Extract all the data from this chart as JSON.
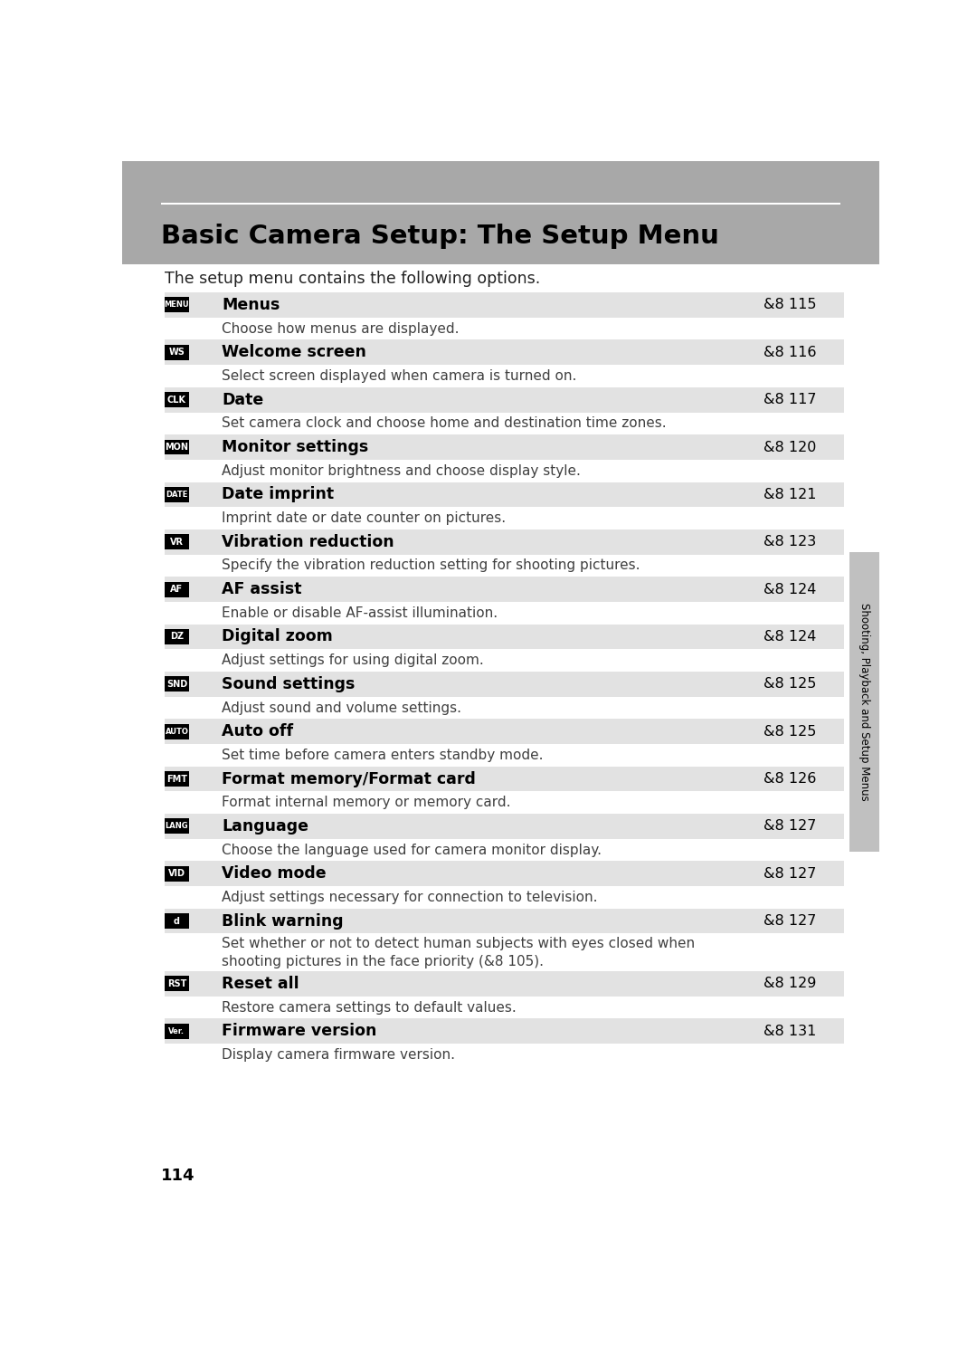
{
  "title": "Basic Camera Setup: The Setup Menu",
  "intro_text": "The setup menu contains the following options.",
  "page_number": "114",
  "side_label": "Shooting, Playback and Setup Menus",
  "bg_color": "#ffffff",
  "header_bg": "#a8a8a8",
  "row_bg_dark": "#e2e2e2",
  "row_bg_light": "#ffffff",
  "entries": [
    {
      "icon_key": "MENU",
      "label": "Menus",
      "page_ref": "115",
      "description": "Choose how menus are displayed."
    },
    {
      "icon_key": "WS",
      "label": "Welcome screen",
      "page_ref": "116",
      "description": "Select screen displayed when camera is turned on."
    },
    {
      "icon_key": "CLK",
      "label": "Date",
      "page_ref": "117",
      "description": "Set camera clock and choose home and destination time zones."
    },
    {
      "icon_key": "MON",
      "label": "Monitor settings",
      "page_ref": "120",
      "description": "Adjust monitor brightness and choose display style."
    },
    {
      "icon_key": "DATE",
      "label": "Date imprint",
      "page_ref": "121",
      "description": "Imprint date or date counter on pictures."
    },
    {
      "icon_key": "VR",
      "label": "Vibration reduction",
      "page_ref": "123",
      "description": "Specify the vibration reduction setting for shooting pictures."
    },
    {
      "icon_key": "AF",
      "label": "AF assist",
      "page_ref": "124",
      "description": "Enable or disable AF-assist illumination."
    },
    {
      "icon_key": "DZ",
      "label": "Digital zoom",
      "page_ref": "124",
      "description": "Adjust settings for using digital zoom."
    },
    {
      "icon_key": "SND",
      "label": "Sound settings",
      "page_ref": "125",
      "description": "Adjust sound and volume settings."
    },
    {
      "icon_key": "AUTO",
      "label": "Auto off",
      "page_ref": "125",
      "description": "Set time before camera enters standby mode."
    },
    {
      "icon_key": "FMT",
      "label": "Format memory/Format card",
      "page_ref": "126",
      "description": "Format internal memory or memory card."
    },
    {
      "icon_key": "LANG",
      "label": "Language",
      "page_ref": "127",
      "description": "Choose the language used for camera monitor display."
    },
    {
      "icon_key": "VID",
      "label": "Video mode",
      "page_ref": "127",
      "description": "Adjust settings necessary for connection to television."
    },
    {
      "icon_key": "BLINK",
      "label": "Blink warning",
      "page_ref": "127",
      "description": "Set whether or not to detect human subjects with eyes closed when\nshooting pictures in the face priority (&8 105)."
    },
    {
      "icon_key": "RST",
      "label": "Reset all",
      "page_ref": "129",
      "description": "Restore camera settings to default values."
    },
    {
      "icon_key": "VER",
      "label": "Firmware version",
      "page_ref": "131",
      "description": "Display camera firmware version."
    }
  ]
}
